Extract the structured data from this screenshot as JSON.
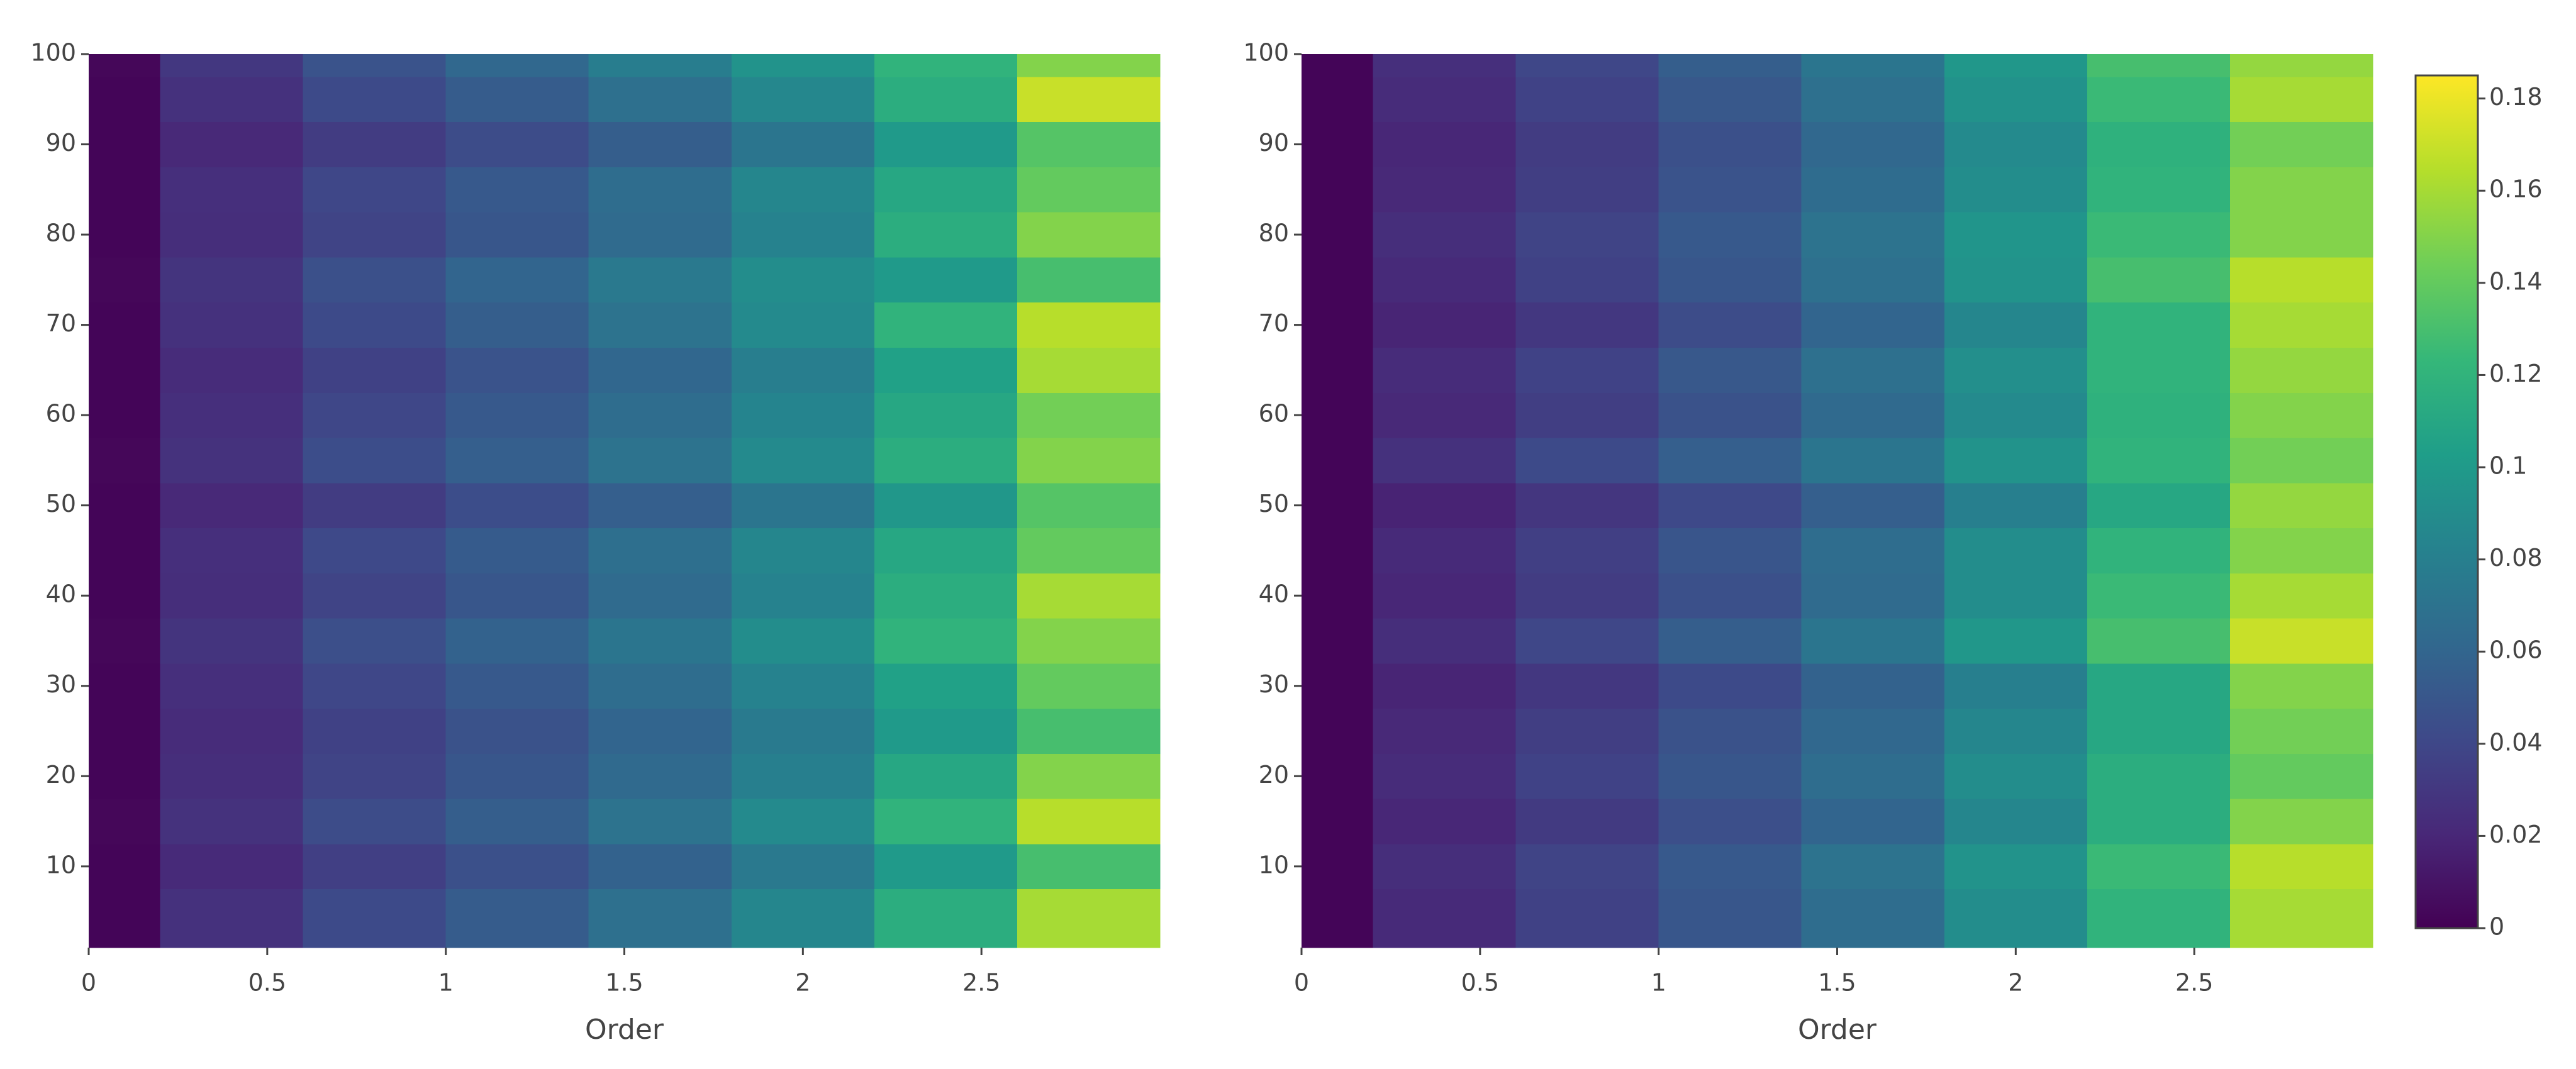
{
  "chart_data": [
    {
      "type": "contour",
      "xlabel": "Order",
      "x": [
        0,
        0.4,
        0.8,
        1.2,
        1.6,
        2.0,
        2.4,
        2.8
      ],
      "y": [
        5,
        10,
        15,
        20,
        25,
        30,
        35,
        40,
        45,
        50,
        55,
        60,
        65,
        70,
        75,
        80,
        85,
        90,
        95,
        100
      ],
      "z": [
        [
          0.002,
          0.026,
          0.042,
          0.054,
          0.068,
          0.085,
          0.115,
          0.16
        ],
        [
          0.002,
          0.022,
          0.035,
          0.046,
          0.058,
          0.075,
          0.1,
          0.13
        ],
        [
          0.003,
          0.027,
          0.043,
          0.055,
          0.07,
          0.088,
          0.12,
          0.165
        ],
        [
          0.002,
          0.024,
          0.038,
          0.05,
          0.063,
          0.08,
          0.11,
          0.15
        ],
        [
          0.002,
          0.023,
          0.036,
          0.047,
          0.06,
          0.076,
          0.1,
          0.13
        ],
        [
          0.002,
          0.025,
          0.04,
          0.052,
          0.066,
          0.082,
          0.105,
          0.14
        ],
        [
          0.003,
          0.028,
          0.045,
          0.058,
          0.072,
          0.09,
          0.12,
          0.15
        ],
        [
          0.002,
          0.024,
          0.038,
          0.05,
          0.064,
          0.082,
          0.115,
          0.16
        ],
        [
          0.002,
          0.025,
          0.041,
          0.053,
          0.067,
          0.085,
          0.11,
          0.14
        ],
        [
          0.002,
          0.021,
          0.033,
          0.044,
          0.056,
          0.072,
          0.098,
          0.135
        ],
        [
          0.003,
          0.027,
          0.044,
          0.056,
          0.07,
          0.088,
          0.115,
          0.15
        ],
        [
          0.002,
          0.025,
          0.04,
          0.052,
          0.066,
          0.084,
          0.11,
          0.145
        ],
        [
          0.002,
          0.023,
          0.036,
          0.048,
          0.061,
          0.079,
          0.105,
          0.16
        ],
        [
          0.002,
          0.026,
          0.042,
          0.055,
          0.07,
          0.088,
          0.12,
          0.165
        ],
        [
          0.003,
          0.028,
          0.046,
          0.06,
          0.075,
          0.09,
          0.1,
          0.13
        ],
        [
          0.002,
          0.024,
          0.038,
          0.05,
          0.064,
          0.082,
          0.115,
          0.15
        ],
        [
          0.002,
          0.025,
          0.04,
          0.052,
          0.066,
          0.085,
          0.11,
          0.14
        ],
        [
          0.002,
          0.021,
          0.033,
          0.043,
          0.055,
          0.072,
          0.1,
          0.135
        ],
        [
          0.002,
          0.026,
          0.042,
          0.054,
          0.068,
          0.086,
          0.115,
          0.17
        ],
        [
          0.003,
          0.03,
          0.048,
          0.062,
          0.078,
          0.095,
          0.12,
          0.15
        ]
      ],
      "xlim": [
        0,
        3
      ],
      "ylim": [
        1,
        100
      ],
      "xticks": [
        0,
        0.5,
        1,
        1.5,
        2,
        2.5
      ],
      "yticks": [
        10,
        20,
        30,
        40,
        50,
        60,
        70,
        80,
        90,
        100
      ]
    },
    {
      "type": "contour",
      "xlabel": "Order",
      "x": [
        0,
        0.4,
        0.8,
        1.2,
        1.6,
        2.0,
        2.4,
        2.8
      ],
      "y": [
        5,
        10,
        15,
        20,
        25,
        30,
        35,
        40,
        45,
        50,
        55,
        60,
        65,
        70,
        75,
        80,
        85,
        90,
        95,
        100
      ],
      "z": [
        [
          0.002,
          0.022,
          0.036,
          0.05,
          0.066,
          0.09,
          0.12,
          0.16
        ],
        [
          0.002,
          0.024,
          0.038,
          0.052,
          0.07,
          0.095,
          0.125,
          0.165
        ],
        [
          0.002,
          0.02,
          0.032,
          0.045,
          0.06,
          0.085,
          0.115,
          0.15
        ],
        [
          0.002,
          0.023,
          0.037,
          0.05,
          0.066,
          0.09,
          0.115,
          0.14
        ],
        [
          0.002,
          0.021,
          0.034,
          0.047,
          0.062,
          0.085,
          0.11,
          0.145
        ],
        [
          0.002,
          0.019,
          0.03,
          0.042,
          0.058,
          0.08,
          0.11,
          0.15
        ],
        [
          0.002,
          0.024,
          0.04,
          0.055,
          0.072,
          0.098,
          0.13,
          0.17
        ],
        [
          0.002,
          0.02,
          0.033,
          0.046,
          0.064,
          0.09,
          0.125,
          0.16
        ],
        [
          0.002,
          0.022,
          0.035,
          0.049,
          0.066,
          0.09,
          0.12,
          0.15
        ],
        [
          0.002,
          0.018,
          0.029,
          0.041,
          0.056,
          0.08,
          0.11,
          0.155
        ],
        [
          0.002,
          0.026,
          0.042,
          0.056,
          0.072,
          0.095,
          0.12,
          0.145
        ],
        [
          0.002,
          0.021,
          0.034,
          0.047,
          0.063,
          0.088,
          0.118,
          0.15
        ],
        [
          0.002,
          0.023,
          0.037,
          0.051,
          0.068,
          0.092,
          0.12,
          0.155
        ],
        [
          0.002,
          0.019,
          0.03,
          0.043,
          0.06,
          0.085,
          0.12,
          0.16
        ],
        [
          0.002,
          0.022,
          0.036,
          0.05,
          0.068,
          0.095,
          0.13,
          0.165
        ],
        [
          0.002,
          0.024,
          0.038,
          0.052,
          0.07,
          0.096,
          0.125,
          0.15
        ],
        [
          0.002,
          0.021,
          0.034,
          0.048,
          0.065,
          0.09,
          0.12,
          0.15
        ],
        [
          0.002,
          0.02,
          0.033,
          0.046,
          0.062,
          0.088,
          0.118,
          0.145
        ],
        [
          0.002,
          0.023,
          0.037,
          0.051,
          0.068,
          0.094,
          0.125,
          0.16
        ],
        [
          0.002,
          0.025,
          0.04,
          0.055,
          0.072,
          0.098,
          0.13,
          0.155
        ]
      ],
      "xlim": [
        0,
        3
      ],
      "ylim": [
        1,
        100
      ],
      "xticks": [
        0,
        0.5,
        1,
        1.5,
        2,
        2.5
      ],
      "yticks": [
        10,
        20,
        30,
        40,
        50,
        60,
        70,
        80,
        90,
        100
      ]
    },
    {
      "type": "colorbar",
      "zlim": [
        0,
        0.185
      ],
      "zticks": [
        0,
        0.02,
        0.04,
        0.06,
        0.08,
        0.1,
        0.12,
        0.14,
        0.16,
        0.18
      ],
      "colorscale": [
        "#440154",
        "#482878",
        "#3e4989",
        "#31688e",
        "#26828e",
        "#1f9e89",
        "#35b779",
        "#6ece58",
        "#b5de2b",
        "#fde725"
      ]
    }
  ]
}
